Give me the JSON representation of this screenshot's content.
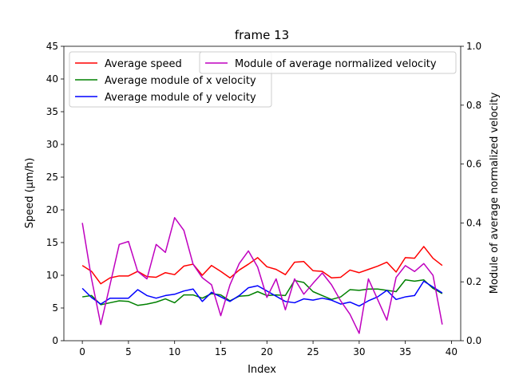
{
  "chart_data": {
    "type": "line",
    "title": "frame 13",
    "xlabel": "Index",
    "ylabel": "Speed (μm/h)",
    "ylabel_right": "Module of average normalized velocity",
    "xlim": [
      -2,
      41
    ],
    "ylim": [
      0,
      45
    ],
    "ylim_right": [
      0,
      1.0
    ],
    "xticks": [
      0,
      5,
      10,
      15,
      20,
      25,
      30,
      35,
      40
    ],
    "yticks": [
      0,
      5,
      10,
      15,
      20,
      25,
      30,
      35,
      40,
      45
    ],
    "yticks_right": [
      "0.0",
      "0.2",
      "0.4",
      "0.6",
      "0.8",
      "1.0"
    ],
    "grid": false,
    "legend_left_placement": "upper-left",
    "legend_right_placement": "upper-right",
    "x": [
      0,
      1,
      2,
      3,
      4,
      5,
      6,
      7,
      8,
      9,
      10,
      11,
      12,
      13,
      14,
      15,
      16,
      17,
      18,
      19,
      20,
      21,
      22,
      23,
      24,
      25,
      26,
      27,
      28,
      29,
      30,
      31,
      32,
      33,
      34,
      35,
      36,
      37,
      38,
      39
    ],
    "series": [
      {
        "name": "Average speed",
        "axis": "left",
        "color": "#ff0000",
        "values": [
          11.5,
          10.6,
          8.7,
          9.6,
          9.9,
          9.9,
          10.6,
          9.8,
          9.7,
          10.4,
          10.1,
          11.4,
          11.7,
          10.0,
          11.5,
          10.6,
          9.6,
          10.8,
          11.7,
          12.7,
          11.3,
          10.9,
          10.1,
          12.0,
          12.1,
          10.7,
          10.6,
          9.6,
          9.7,
          10.8,
          10.4,
          10.9,
          11.4,
          12.0,
          10.5,
          12.7,
          12.6,
          14.4,
          12.6,
          11.5
        ]
      },
      {
        "name": "Average module of x velocity",
        "axis": "left",
        "color": "#008000",
        "values": [
          6.7,
          6.9,
          5.5,
          5.8,
          6.1,
          6.0,
          5.4,
          5.6,
          5.9,
          6.4,
          5.8,
          7.0,
          7.0,
          6.5,
          7.2,
          7.0,
          6.1,
          6.8,
          6.9,
          7.5,
          6.9,
          7.0,
          6.9,
          9.2,
          8.9,
          7.5,
          6.9,
          6.3,
          6.7,
          7.8,
          7.7,
          7.9,
          7.9,
          7.7,
          7.5,
          9.3,
          9.1,
          9.3,
          8.0,
          7.2
        ]
      },
      {
        "name": "Average module of y velocity",
        "axis": "left",
        "color": "#0000ff",
        "values": [
          8.0,
          6.6,
          5.6,
          6.5,
          6.5,
          6.5,
          7.8,
          6.9,
          6.5,
          6.9,
          7.1,
          7.6,
          7.9,
          6.0,
          7.4,
          6.7,
          6.0,
          6.9,
          8.1,
          8.4,
          7.6,
          6.8,
          6.0,
          5.8,
          6.4,
          6.2,
          6.5,
          6.2,
          5.6,
          5.9,
          5.3,
          6.1,
          6.7,
          7.7,
          6.3,
          6.7,
          6.9,
          9.1,
          8.2,
          7.3
        ]
      },
      {
        "name": "Module of average normalized velocity",
        "axis": "right",
        "color": "#bf00bf",
        "values": [
          0.4,
          0.21,
          0.055,
          0.19,
          0.327,
          0.337,
          0.235,
          0.21,
          0.327,
          0.3,
          0.418,
          0.375,
          0.26,
          0.214,
          0.19,
          0.085,
          0.19,
          0.262,
          0.305,
          0.25,
          0.147,
          0.21,
          0.105,
          0.21,
          0.158,
          0.195,
          0.23,
          0.19,
          0.135,
          0.09,
          0.025,
          0.21,
          0.14,
          0.07,
          0.215,
          0.255,
          0.235,
          0.262,
          0.222,
          0.055
        ]
      }
    ]
  }
}
